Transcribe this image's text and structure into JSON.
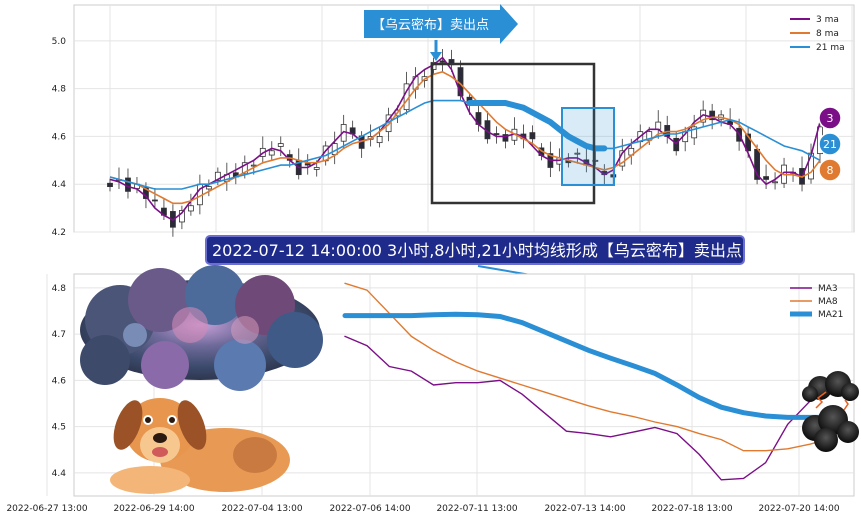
{
  "banner": {
    "text": "2022-07-12 14:00:00 3小时,8小时,21小时均线形成【乌云密布】卖出点"
  },
  "arrow_label": {
    "text": "【乌云密布】卖出点"
  },
  "badges": {
    "ma3": "3",
    "ma21": "21",
    "ma8": "8"
  },
  "colors": {
    "ma3": "#7b0f87",
    "ma8": "#e07a30",
    "ma21": "#2a8fd4",
    "banner_bg": "#1f2b8a",
    "arrow": "#2a8fd4"
  },
  "chart_data": [
    {
      "type": "line",
      "title": "",
      "ylim": [
        4.2,
        5.15
      ],
      "yticks": [
        "4.2",
        "4.4",
        "4.6",
        "4.8",
        "5.0"
      ],
      "legend_position": "top-right",
      "n_points": 80,
      "series": [
        {
          "name": "3 ma",
          "values": [
            4.42,
            4.41,
            4.39,
            4.38,
            4.35,
            4.3,
            4.27,
            4.25,
            4.28,
            4.33,
            4.38,
            4.4,
            4.42,
            4.44,
            4.46,
            4.48,
            4.5,
            4.53,
            4.55,
            4.54,
            4.5,
            4.47,
            4.47,
            4.49,
            4.54,
            4.58,
            4.62,
            4.61,
            4.58,
            4.59,
            4.62,
            4.67,
            4.72,
            4.79,
            4.85,
            4.88,
            4.9,
            4.93,
            4.88,
            4.78,
            4.7,
            4.65,
            4.62,
            4.6,
            4.6,
            4.61,
            4.6,
            4.56,
            4.52,
            4.5,
            4.5,
            4.51,
            4.51,
            4.49,
            4.47,
            4.44,
            4.46,
            4.53,
            4.57,
            4.6,
            4.63,
            4.63,
            4.6,
            4.57,
            4.61,
            4.66,
            4.69,
            4.68,
            4.66,
            4.65,
            4.61,
            4.53,
            4.44,
            4.4,
            4.42,
            4.45,
            4.45,
            4.43,
            4.52,
            4.66
          ]
        },
        {
          "name": "8 ma",
          "values": [
            4.43,
            4.42,
            4.41,
            4.4,
            4.38,
            4.36,
            4.34,
            4.32,
            4.32,
            4.33,
            4.35,
            4.37,
            4.39,
            4.41,
            4.43,
            4.45,
            4.47,
            4.49,
            4.5,
            4.51,
            4.51,
            4.5,
            4.49,
            4.49,
            4.5,
            4.52,
            4.55,
            4.57,
            4.58,
            4.59,
            4.62,
            4.65,
            4.7,
            4.75,
            4.8,
            4.84,
            4.86,
            4.87,
            4.85,
            4.82,
            4.78,
            4.74,
            4.7,
            4.66,
            4.63,
            4.61,
            4.59,
            4.57,
            4.54,
            4.52,
            4.51,
            4.5,
            4.49,
            4.48,
            4.47,
            4.46,
            4.47,
            4.49,
            4.52,
            4.55,
            4.58,
            4.61,
            4.62,
            4.62,
            4.63,
            4.65,
            4.67,
            4.68,
            4.68,
            4.67,
            4.65,
            4.6,
            4.55,
            4.5,
            4.46,
            4.44,
            4.44,
            4.43,
            4.45,
            4.5
          ]
        },
        {
          "name": "21 ma",
          "values": [
            4.43,
            4.42,
            4.41,
            4.4,
            4.39,
            4.38,
            4.38,
            4.38,
            4.38,
            4.39,
            4.4,
            4.4,
            4.41,
            4.42,
            4.43,
            4.44,
            4.45,
            4.46,
            4.47,
            4.48,
            4.48,
            4.49,
            4.5,
            4.51,
            4.52,
            4.54,
            4.56,
            4.58,
            4.6,
            4.62,
            4.64,
            4.66,
            4.68,
            4.7,
            4.72,
            4.74,
            4.75,
            4.75,
            4.75,
            4.75,
            4.74,
            4.74,
            4.74,
            4.74,
            4.74,
            4.73,
            4.72,
            4.7,
            4.68,
            4.66,
            4.63,
            4.6,
            4.58,
            4.56,
            4.55,
            4.55,
            4.55,
            4.56,
            4.57,
            4.58,
            4.59,
            4.6,
            4.61,
            4.61,
            4.62,
            4.63,
            4.64,
            4.65,
            4.66,
            4.67,
            4.66,
            4.64,
            4.62,
            4.6,
            4.58,
            4.56,
            4.55,
            4.54,
            4.52,
            4.5
          ]
        }
      ]
    },
    {
      "type": "line",
      "title": "",
      "ylim": [
        4.35,
        4.83
      ],
      "yticks": [
        "4.4",
        "4.5",
        "4.6",
        "4.7",
        "4.8"
      ],
      "x_ticklabels": [
        "2022-06-27 13:00",
        "2022-06-29 14:00",
        "2022-07-04 13:00",
        "2022-07-06 14:00",
        "2022-07-11 13:00",
        "2022-07-13 14:00",
        "2022-07-18 13:00",
        "2022-07-20 14:00"
      ],
      "legend_position": "top-right",
      "n_points": 23,
      "series": [
        {
          "name": "MA3",
          "values": [
            4.695,
            4.675,
            4.63,
            4.62,
            4.59,
            4.595,
            4.595,
            4.6,
            4.57,
            4.53,
            4.49,
            4.485,
            4.478,
            4.488,
            4.498,
            4.485,
            4.44,
            4.385,
            4.388,
            4.422,
            4.505,
            4.555,
            4.6
          ]
        },
        {
          "name": "MA8",
          "values": [
            4.81,
            4.795,
            4.745,
            4.695,
            4.665,
            4.64,
            4.62,
            4.605,
            4.59,
            4.575,
            4.56,
            4.545,
            4.532,
            4.522,
            4.51,
            4.5,
            4.485,
            4.472,
            4.448,
            4.448,
            4.452,
            4.462,
            4.475
          ]
        },
        {
          "name": "MA21",
          "values": [
            4.74,
            4.74,
            4.74,
            4.74,
            4.742,
            4.743,
            4.742,
            4.738,
            4.725,
            4.705,
            4.685,
            4.665,
            4.648,
            4.632,
            4.615,
            4.59,
            4.563,
            4.542,
            4.53,
            4.523,
            4.52,
            4.52,
            4.52
          ]
        }
      ]
    }
  ]
}
